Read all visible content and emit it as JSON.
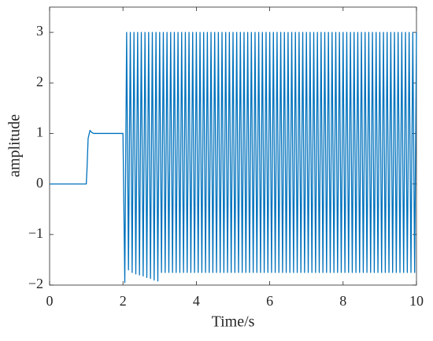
{
  "chart_data": {
    "type": "line",
    "xlabel": "Time/s",
    "ylabel": "amplitude",
    "xlim": [
      0,
      10
    ],
    "xticks": [
      0,
      2,
      4,
      6,
      8,
      10
    ],
    "ylim": [
      -2,
      3.5
    ],
    "yticks": [
      {
        "value": -2,
        "label": "−2"
      },
      {
        "value": -1,
        "label": "−1"
      },
      0,
      1,
      2,
      3
    ],
    "x": [
      0,
      1,
      1.02,
      1.05,
      1.1,
      1.15,
      1.2,
      2,
      2.05,
      2.1,
      2.15,
      2.2,
      2.25,
      2.3,
      2.35,
      2.4,
      2.45,
      2.5,
      2.55,
      2.6,
      2.65,
      2.7,
      2.75,
      2.8,
      2.85,
      2.9,
      2.95,
      3,
      3.05,
      3.1,
      3.15,
      3.2,
      3.25,
      3.3,
      3.35,
      3.4,
      3.45,
      3.5,
      3.55,
      3.6,
      3.65,
      3.7,
      3.75,
      3.8,
      3.85,
      3.9,
      3.95,
      4,
      4.05,
      4.1,
      4.15,
      4.2,
      4.25,
      4.3,
      4.35,
      4.4,
      4.45,
      4.5,
      4.55,
      4.6,
      4.65,
      4.7,
      4.75,
      4.8,
      4.85,
      4.9,
      4.95,
      5,
      5.05,
      5.1,
      5.15,
      5.2,
      5.25,
      5.3,
      5.35,
      5.4,
      5.45,
      5.5,
      5.55,
      5.6,
      5.65,
      5.7,
      5.75,
      5.8,
      5.85,
      5.9,
      5.95,
      6,
      6.05,
      6.1,
      6.15,
      6.2,
      6.25,
      6.3,
      6.35,
      6.4,
      6.45,
      6.5,
      6.55,
      6.6,
      6.65,
      6.7,
      6.75,
      6.8,
      6.85,
      6.9,
      6.95,
      7,
      7.05,
      7.1,
      7.15,
      7.2,
      7.25,
      7.3,
      7.35,
      7.4,
      7.45,
      7.5,
      7.55,
      7.6,
      7.65,
      7.7,
      7.75,
      7.8,
      7.85,
      7.9,
      7.95,
      8,
      8.05,
      8.1,
      8.15,
      8.2,
      8.25,
      8.3,
      8.35,
      8.4,
      8.45,
      8.5,
      8.55,
      8.6,
      8.65,
      8.7,
      8.75,
      8.8,
      8.85,
      8.9,
      8.95,
      9,
      9.05,
      9.1,
      9.15,
      9.2,
      9.25,
      9.3,
      9.35,
      9.4,
      9.45,
      9.5,
      9.55,
      9.6,
      9.65,
      9.7,
      9.75,
      9.8,
      9.85,
      9.9,
      9.95,
      10
    ],
    "series": [
      {
        "color": "#0072bd",
        "values": [
          0,
          0,
          0.3,
          0.9,
          1.06,
          1.02,
          1,
          1,
          -1.95,
          3,
          -1.7,
          3,
          -1.75,
          3,
          -1.78,
          3,
          -1.8,
          3,
          -1.82,
          3,
          -1.85,
          3,
          -1.87,
          3,
          -1.9,
          3,
          -1.92,
          3,
          -1.75,
          3,
          -1.75,
          3,
          -1.75,
          3,
          -1.75,
          3,
          -1.75,
          3,
          -1.75,
          3,
          -1.75,
          3,
          -1.75,
          3,
          -1.75,
          3,
          -1.75,
          3,
          -1.75,
          3,
          -1.75,
          3,
          -1.75,
          3,
          -1.75,
          3,
          -1.75,
          3,
          -1.75,
          3,
          -1.75,
          3,
          -1.75,
          3,
          -1.75,
          3,
          -1.75,
          3,
          -1.75,
          3,
          -1.75,
          3,
          -1.75,
          3,
          -1.75,
          3,
          -1.75,
          3,
          -1.75,
          3,
          -1.75,
          3,
          -1.75,
          3,
          -1.75,
          3,
          -1.75,
          3,
          -1.75,
          3,
          -1.75,
          3,
          -1.75,
          3,
          -1.75,
          3,
          -1.75,
          3,
          -1.75,
          3,
          -1.75,
          3,
          -1.75,
          3,
          -1.75,
          3,
          -1.75,
          3,
          -1.75,
          3,
          -1.75,
          3,
          -1.75,
          3,
          -1.75,
          3,
          -1.75,
          3,
          -1.75,
          3,
          -1.75,
          3,
          -1.75,
          3,
          -1.75,
          3,
          -1.75,
          3,
          -1.75,
          3,
          -1.75,
          3,
          -1.75,
          3,
          -1.75,
          3,
          -1.75,
          3,
          -1.75,
          3,
          -1.75,
          3,
          -1.75,
          3,
          -1.75,
          3,
          -1.75,
          3,
          -1.75,
          3,
          -1.75,
          3,
          -1.75,
          3,
          -1.75,
          3,
          -1.75,
          3,
          -1.75,
          3,
          -1.75,
          3,
          -1.75,
          3,
          -1.75,
          3,
          -1.75,
          3
        ]
      }
    ]
  }
}
